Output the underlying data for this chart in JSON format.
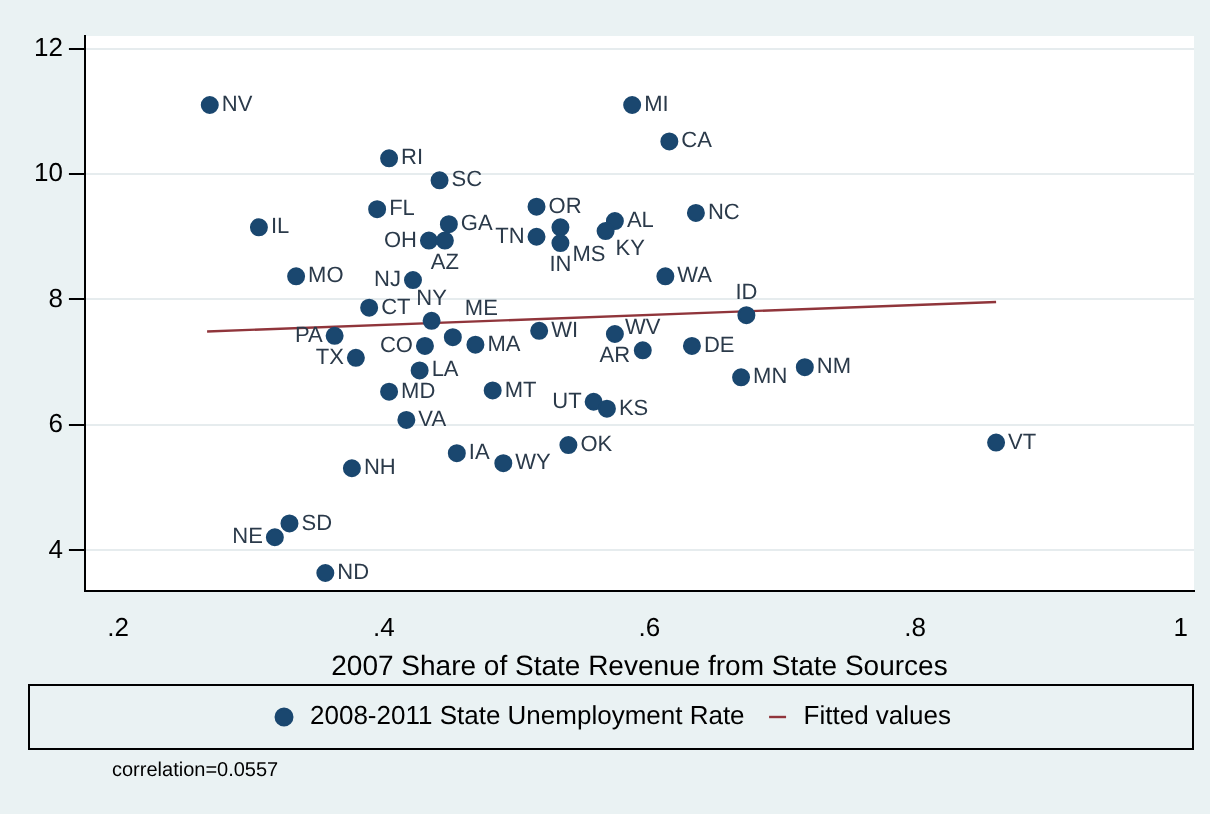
{
  "chart_data": {
    "type": "scatter",
    "xlabel": "2007 Share of State Revenue from State Sources",
    "xlim": [
      0.175,
      1.01
    ],
    "xticks": [
      {
        "value": 0.2,
        "label": ".2"
      },
      {
        "value": 0.4,
        "label": ".4"
      },
      {
        "value": 0.6,
        "label": ".6"
      },
      {
        "value": 0.8,
        "label": ".8"
      },
      {
        "value": 1,
        "label": "1"
      }
    ],
    "ylim": [
      3.35,
      12.2
    ],
    "yticks": [
      4,
      6,
      8,
      10,
      12
    ],
    "grid": "y",
    "legend": "bottom",
    "series": [
      {
        "name": "2008-2011 State Unemployment Rate",
        "marker": "circle",
        "color": "#1a476f",
        "x": [
          0.269,
          0.587,
          0.615,
          0.404,
          0.442,
          0.395,
          0.515,
          0.306,
          0.449,
          0.434,
          0.446,
          0.533,
          0.515,
          0.533,
          0.574,
          0.567,
          0.635,
          0.334,
          0.422,
          0.612,
          0.389,
          0.436,
          0.673,
          0.363,
          0.452,
          0.469,
          0.431,
          0.379,
          0.427,
          0.517,
          0.574,
          0.595,
          0.632,
          0.404,
          0.482,
          0.558,
          0.568,
          0.669,
          0.717,
          0.417,
          0.539,
          0.455,
          0.49,
          0.376,
          0.861,
          0.329,
          0.318,
          0.356
        ],
        "values": [
          11.1,
          11.1,
          10.52,
          10.25,
          9.9,
          9.44,
          9.48,
          9.15,
          9.2,
          8.94,
          8.94,
          9.15,
          9.0,
          8.9,
          9.25,
          9.09,
          9.38,
          8.37,
          8.31,
          8.37,
          7.87,
          7.66,
          7.75,
          7.42,
          7.4,
          7.28,
          7.26,
          7.07,
          6.87,
          7.5,
          7.45,
          7.19,
          7.26,
          6.53,
          6.55,
          6.37,
          6.26,
          6.76,
          6.92,
          6.08,
          5.68,
          5.55,
          5.39,
          5.31,
          5.72,
          4.43,
          4.21,
          3.64
        ]
      },
      {
        "name": "Fitted values",
        "type": "line",
        "color": "#90353b",
        "x": [
          0.267,
          0.861
        ],
        "values": [
          7.49,
          7.96
        ]
      }
    ],
    "annotations": [
      {
        "text": "NV",
        "x": 0.269,
        "y": 11.1
      },
      {
        "text": "MI",
        "x": 0.587,
        "y": 11.1
      },
      {
        "text": "CA",
        "x": 0.615,
        "y": 10.52
      },
      {
        "text": "RI",
        "x": 0.404,
        "y": 10.25
      },
      {
        "text": "SC",
        "x": 0.442,
        "y": 9.9
      },
      {
        "text": "FL",
        "x": 0.395,
        "y": 9.44
      },
      {
        "text": "OR",
        "x": 0.515,
        "y": 9.48
      },
      {
        "text": "IL",
        "x": 0.306,
        "y": 9.15
      },
      {
        "text": "GA",
        "x": 0.449,
        "y": 9.2
      },
      {
        "text": "OH",
        "x": 0.434,
        "y": 8.94
      },
      {
        "text": "AZ",
        "x": 0.446,
        "y": 8.94
      },
      {
        "text": "MS",
        "x": 0.533,
        "y": 9.15
      },
      {
        "text": "TN",
        "x": 0.515,
        "y": 9.0
      },
      {
        "text": "IN",
        "x": 0.533,
        "y": 8.9
      },
      {
        "text": "AL",
        "x": 0.574,
        "y": 9.25
      },
      {
        "text": "KY",
        "x": 0.567,
        "y": 9.09
      },
      {
        "text": "NC",
        "x": 0.635,
        "y": 9.38
      },
      {
        "text": "MO",
        "x": 0.334,
        "y": 8.37
      },
      {
        "text": "NJ",
        "x": 0.422,
        "y": 8.31
      },
      {
        "text": "WA",
        "x": 0.612,
        "y": 8.37
      },
      {
        "text": "CT",
        "x": 0.389,
        "y": 7.87
      },
      {
        "text": "NY",
        "x": 0.436,
        "y": 7.66
      },
      {
        "text": "ID",
        "x": 0.673,
        "y": 7.75
      },
      {
        "text": "PA",
        "x": 0.363,
        "y": 7.42
      },
      {
        "text": "ME",
        "x": 0.452,
        "y": 7.4
      },
      {
        "text": "MA",
        "x": 0.469,
        "y": 7.28
      },
      {
        "text": "CO",
        "x": 0.431,
        "y": 7.26
      },
      {
        "text": "TX",
        "x": 0.379,
        "y": 7.07
      },
      {
        "text": "LA",
        "x": 0.427,
        "y": 6.87
      },
      {
        "text": "WI",
        "x": 0.517,
        "y": 7.5
      },
      {
        "text": "AR",
        "x": 0.574,
        "y": 7.45
      },
      {
        "text": "WV",
        "x": 0.595,
        "y": 7.19
      },
      {
        "text": "DE",
        "x": 0.632,
        "y": 7.26
      },
      {
        "text": "MD",
        "x": 0.404,
        "y": 6.53
      },
      {
        "text": "MT",
        "x": 0.482,
        "y": 6.55
      },
      {
        "text": "UT",
        "x": 0.558,
        "y": 6.37
      },
      {
        "text": "KS",
        "x": 0.568,
        "y": 6.26
      },
      {
        "text": "MN",
        "x": 0.669,
        "y": 6.76
      },
      {
        "text": "NM",
        "x": 0.717,
        "y": 6.92
      },
      {
        "text": "VA",
        "x": 0.417,
        "y": 6.08
      },
      {
        "text": "OK",
        "x": 0.539,
        "y": 5.68
      },
      {
        "text": "IA",
        "x": 0.455,
        "y": 5.55
      },
      {
        "text": "WY",
        "x": 0.49,
        "y": 5.39
      },
      {
        "text": "NH",
        "x": 0.376,
        "y": 5.31
      },
      {
        "text": "VT",
        "x": 0.861,
        "y": 5.72
      },
      {
        "text": "SD",
        "x": 0.329,
        "y": 4.43
      },
      {
        "text": "NE",
        "x": 0.318,
        "y": 4.21
      },
      {
        "text": "ND",
        "x": 0.356,
        "y": 3.64
      },
      "correlation=0.0557"
    ]
  }
}
